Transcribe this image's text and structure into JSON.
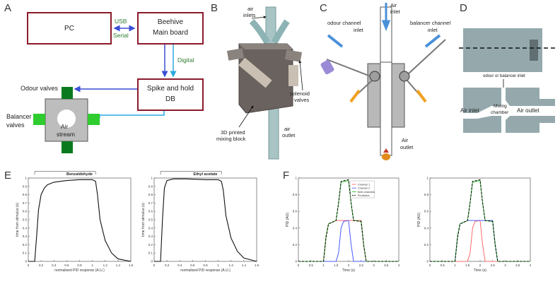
{
  "panels": {
    "A": {
      "letter": "A",
      "pc": "PC",
      "board_line1": "Beehive",
      "board_line2": "Main board",
      "usb": "USB",
      "serial": "Serial",
      "digital": "Digital",
      "spike_line1": "Spike and hold",
      "spike_line2": "DB",
      "odour_valves": "Odour valves",
      "balancer_line1": "Balancer",
      "balancer_line2": "valves",
      "air_line1": "Air",
      "air_line2": "stream",
      "colors": {
        "box_border": "#8b1a2b",
        "usb_text": "#2e7d32",
        "arrow_blue": "#3a4fd6",
        "arrow_cyan": "#29a8e0",
        "valve_dark": "#0a7a1e",
        "valve_light": "#2ecc2e"
      }
    },
    "B": {
      "letter": "B",
      "air_inlets_line1": "air",
      "air_inlets_line2": "inlets",
      "solenoid_line1": "solenoid",
      "solenoid_line2": "valves",
      "printed_line1": "3D printed",
      "printed_line2": "mixing block",
      "air_outlet_line1": "air",
      "air_outlet_line2": "outlet"
    },
    "C": {
      "letter": "C",
      "air_inlet_line1": "Air",
      "air_inlet_line2": "inlet",
      "odour_line1": "odour channel",
      "odour_line2": "inlet",
      "balancer_line1": "balancer channel",
      "balancer_line2": "inlet",
      "air_outlet_line1": "Air",
      "air_outlet_line2": "outlet"
    },
    "D": {
      "letter": "D",
      "top_label": "odour or balancer inlet",
      "air_inlet": "Air inlet",
      "mixing_line1": "Mixing",
      "mixing_line2": "chamber",
      "air_outlet": "Air outlet"
    },
    "E": {
      "letter": "E",
      "left_title": "Benzaldehyde",
      "right_title": "Ethyl acetate",
      "ylabel": "time from stimulus (s)",
      "xlabel": "normalised PID response (A.U.)"
    },
    "F": {
      "letter": "F",
      "ylabel": "PID (AU)",
      "xlabel": "Time (s)",
      "legend": [
        "Channel 1",
        "Channel 2",
        "Both channels",
        "Prediction"
      ]
    }
  },
  "chart_data": [
    {
      "type": "line",
      "title": "Benzaldehyde",
      "xlabel": "normalised PID response (A.U.)",
      "ylabel": "time from stimulus (s)",
      "xlim": [
        0,
        1.6
      ],
      "ylim": [
        0,
        1
      ],
      "xticks": [
        "0",
        "0.2",
        "0.4",
        "0.6",
        "0.8",
        "1",
        "1.2",
        "1.4",
        "1.6"
      ],
      "yticks": [
        "0",
        "0.1",
        "0.2",
        "0.3",
        "0.4",
        "0.5",
        "0.6",
        "0.7",
        "0.8",
        "0.9",
        "1"
      ],
      "series": [
        {
          "x": [
            0,
            0.1,
            0.13,
            0.16,
            0.2,
            0.25,
            0.3,
            0.4,
            0.5,
            0.6,
            0.8,
            1.0,
            1.05,
            1.08,
            1.12,
            1.2,
            1.3,
            1.4,
            1.6
          ],
          "y": [
            0,
            0,
            0.3,
            0.62,
            0.8,
            0.88,
            0.92,
            0.95,
            0.96,
            0.97,
            0.98,
            0.98,
            0.96,
            0.8,
            0.5,
            0.25,
            0.1,
            0.03,
            0.0
          ]
        }
      ]
    },
    {
      "type": "line",
      "title": "Ethyl acetate",
      "xlabel": "normalised PID response (A.U.)",
      "ylabel": "time from stimulus (s)",
      "xlim": [
        0,
        1.6
      ],
      "ylim": [
        0,
        1
      ],
      "xticks": [
        "0",
        "0.2",
        "0.4",
        "0.6",
        "0.8",
        "1",
        "1.2",
        "1.4",
        "1.6"
      ],
      "yticks": [
        "0",
        "0.1",
        "0.2",
        "0.3",
        "0.4",
        "0.5",
        "0.6",
        "0.7",
        "0.8",
        "0.9",
        "1"
      ],
      "series": [
        {
          "x": [
            0,
            0.1,
            0.13,
            0.16,
            0.2,
            0.3,
            0.5,
            0.8,
            1.0,
            1.05,
            1.08,
            1.12,
            1.2,
            1.3,
            1.4,
            1.6
          ],
          "y": [
            0,
            0,
            0.5,
            0.88,
            0.97,
            0.99,
            0.99,
            0.98,
            0.98,
            0.96,
            0.85,
            0.55,
            0.28,
            0.12,
            0.04,
            0.0
          ]
        }
      ]
    },
    {
      "type": "line",
      "xlabel": "Time (s)",
      "ylabel": "PID (AU)",
      "xlim": [
        0,
        4
      ],
      "ylim": [
        0,
        1
      ],
      "xticks": [
        "0",
        "0.5",
        "1",
        "1.5",
        "2",
        "2.5",
        "3",
        "3.5",
        "4"
      ],
      "yticks": [
        "0",
        "0.2",
        "0.4",
        "0.6",
        "0.8",
        "1"
      ],
      "legend": "top-right",
      "series": [
        {
          "name": "Channel 1",
          "color": "#ff6b6b",
          "x": [
            0,
            1.0,
            1.1,
            1.2,
            1.5,
            2.5,
            2.6,
            2.7,
            4
          ],
          "y": [
            0,
            0,
            0.3,
            0.45,
            0.49,
            0.49,
            0.2,
            0,
            0
          ]
        },
        {
          "name": "Channel 2",
          "color": "#4a5cff",
          "x": [
            0,
            1.5,
            1.6,
            1.7,
            1.8,
            2.0,
            2.1,
            2.2,
            4
          ],
          "y": [
            0,
            0,
            0.1,
            0.4,
            0.48,
            0.49,
            0.2,
            0,
            0
          ]
        },
        {
          "name": "Both channels",
          "color": "#2eb82e",
          "x": [
            0,
            1.0,
            1.1,
            1.2,
            1.5,
            1.6,
            1.7,
            2.0,
            2.1,
            2.2,
            2.5,
            2.6,
            2.7,
            4
          ],
          "y": [
            0,
            0,
            0.3,
            0.45,
            0.49,
            0.7,
            0.95,
            0.97,
            0.7,
            0.49,
            0.48,
            0.2,
            0,
            0
          ]
        },
        {
          "name": "Prediction",
          "color": "#000000",
          "x": [
            0,
            1.0,
            1.1,
            1.2,
            1.5,
            1.6,
            1.7,
            2.0,
            2.1,
            2.2,
            2.5,
            2.6,
            2.7,
            4
          ],
          "y": [
            0,
            0,
            0.28,
            0.45,
            0.49,
            0.7,
            0.96,
            0.98,
            0.7,
            0.49,
            0.48,
            0.2,
            0,
            0
          ]
        }
      ]
    },
    {
      "type": "line",
      "xlabel": "Time (s)",
      "ylabel": "PID (AU)",
      "xlim": [
        0,
        4
      ],
      "ylim": [
        0,
        1
      ],
      "xticks": [
        "0",
        "0.5",
        "1",
        "1.5",
        "2",
        "2.5",
        "3",
        "3.5",
        "4"
      ],
      "yticks": [
        "0",
        "0.2",
        "0.4",
        "0.6",
        "0.8",
        "1"
      ],
      "series": [
        {
          "name": "Channel 1",
          "color": "#ff6b6b",
          "x": [
            0,
            1.5,
            1.6,
            1.7,
            1.8,
            2.0,
            2.1,
            2.2,
            4
          ],
          "y": [
            0,
            0,
            0.1,
            0.4,
            0.48,
            0.49,
            0.2,
            0,
            0
          ]
        },
        {
          "name": "Channel 2",
          "color": "#4a5cff",
          "x": [
            0,
            1.0,
            1.1,
            1.2,
            1.5,
            2.5,
            2.6,
            2.7,
            4
          ],
          "y": [
            0,
            0,
            0.3,
            0.45,
            0.49,
            0.49,
            0.2,
            0,
            0
          ]
        },
        {
          "name": "Both channels",
          "color": "#2eb82e",
          "x": [
            0,
            1.0,
            1.1,
            1.2,
            1.5,
            1.6,
            1.7,
            2.0,
            2.1,
            2.2,
            2.5,
            2.6,
            2.7,
            4
          ],
          "y": [
            0,
            0,
            0.3,
            0.45,
            0.49,
            0.7,
            0.95,
            0.97,
            0.7,
            0.49,
            0.48,
            0.2,
            0,
            0
          ]
        },
        {
          "name": "Prediction",
          "color": "#000000",
          "x": [
            0,
            1.0,
            1.1,
            1.2,
            1.5,
            1.6,
            1.7,
            2.0,
            2.1,
            2.2,
            2.5,
            2.6,
            2.7,
            4
          ],
          "y": [
            0,
            0,
            0.28,
            0.45,
            0.49,
            0.7,
            0.96,
            0.98,
            0.7,
            0.49,
            0.48,
            0.2,
            0,
            0
          ]
        }
      ]
    }
  ]
}
